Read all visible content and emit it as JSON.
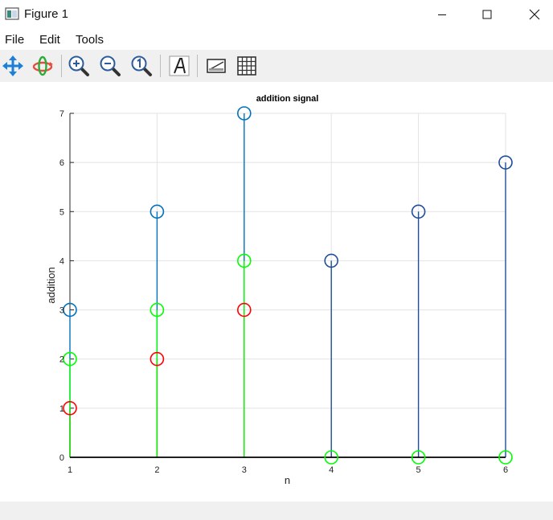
{
  "window": {
    "title": "Figure 1"
  },
  "menu": {
    "file": "File",
    "edit": "Edit",
    "tools": "Tools"
  },
  "toolbar": {
    "icons": [
      "pan-icon",
      "rotate-icon",
      "zoom-in-icon",
      "zoom-out-icon",
      "zoom-reset-icon",
      "insert-text-icon",
      "toggle-legend-icon",
      "toggle-grid-icon"
    ]
  },
  "colors": {
    "sum": "#0072bd",
    "signal_1": "#ff0000",
    "signal_2": "#00ff00",
    "signal_3": "#1f4e99",
    "baseline": "#000000",
    "grid": "#e3e3e3"
  },
  "chart_data": {
    "type": "stem",
    "title": "addition signal",
    "xlabel": "n",
    "ylabel": "addition",
    "xlim": [
      1,
      6
    ],
    "ylim": [
      0,
      7
    ],
    "xticks": [
      1,
      2,
      3,
      4,
      5,
      6
    ],
    "yticks": [
      0,
      1,
      2,
      3,
      4,
      5,
      6,
      7
    ],
    "grid": true,
    "series": [
      {
        "x": [
          1,
          2,
          3
        ],
        "values": [
          3,
          5,
          7
        ],
        "color": "#0072bd"
      },
      {
        "x": [
          1,
          2,
          3
        ],
        "values": [
          1,
          2,
          3
        ],
        "color": "#ff0000"
      },
      {
        "x": [
          1,
          2,
          3,
          4,
          5,
          6
        ],
        "values": [
          2,
          3,
          4,
          0,
          0,
          0
        ],
        "color": "#00ff00"
      },
      {
        "x": [
          4,
          5,
          6
        ],
        "values": [
          4,
          5,
          6
        ],
        "color": "#1f4e99"
      }
    ]
  }
}
